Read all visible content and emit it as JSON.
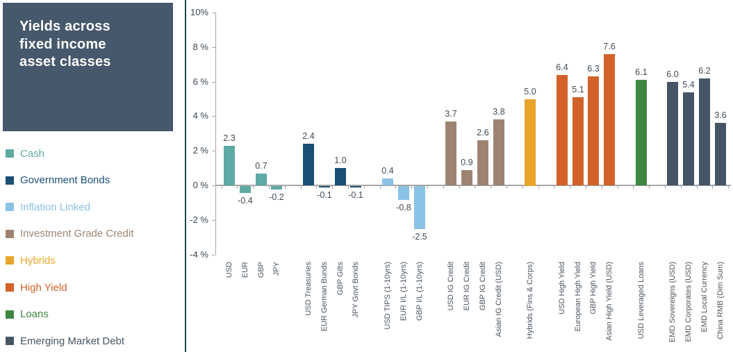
{
  "title": "Yields across\nfixed income\nasset classes",
  "legend": {
    "items": [
      {
        "label": "Cash",
        "color": "#5EA9A3"
      },
      {
        "label": "Government Bonds",
        "color": "#1A4F76"
      },
      {
        "label": "Inflation Linked",
        "color": "#8AC2E5"
      },
      {
        "label": "Investment Grade Credit",
        "color": "#9D8472"
      },
      {
        "label": "Hybrids",
        "color": "#E9A42B"
      },
      {
        "label": "High Yield",
        "color": "#D2622A"
      },
      {
        "label": "Loans",
        "color": "#3F8742"
      },
      {
        "label": "Emerging Market Debt",
        "color": "#455565"
      }
    ]
  },
  "chart_data": {
    "type": "bar",
    "title": "Yields across fixed income asset classes",
    "xlabel": "",
    "ylabel": "",
    "ylim": [
      -4,
      10
    ],
    "grid": false,
    "legend_position": "left",
    "y_ticks": [
      10,
      8,
      6,
      4,
      2,
      0,
      -2,
      -4
    ],
    "y_tick_labels": [
      "10%",
      "8 %",
      "6 %",
      "4 %",
      "2 %",
      "0 %",
      "-2 %",
      "-4 %"
    ],
    "groups": [
      {
        "name": "Cash",
        "color": "#5EA9A3",
        "bars": [
          {
            "label": "USD",
            "value": 2.3
          },
          {
            "label": "EUR",
            "value": -0.4
          },
          {
            "label": "GBP",
            "value": 0.7
          },
          {
            "label": "JPY",
            "value": -0.2
          }
        ]
      },
      {
        "name": "Government Bonds",
        "color": "#1A4F76",
        "bars": [
          {
            "label": "USD Treasuries",
            "value": 2.4
          },
          {
            "label": "EUR German Bunds",
            "value": -0.1
          },
          {
            "label": "GBP Gilts",
            "value": 1.0
          },
          {
            "label": "JPY Govt Bonds",
            "value": -0.1
          }
        ]
      },
      {
        "name": "Inflation Linked",
        "color": "#8AC2E5",
        "bars": [
          {
            "label": "USD TIPS (1-10yrs)",
            "value": 0.4
          },
          {
            "label": "EUR I/L (1-10yrs)",
            "value": -0.8
          },
          {
            "label": "GBP I/L (1-10yrs)",
            "value": -2.5
          }
        ]
      },
      {
        "name": "Investment Grade Credit",
        "color": "#9D8472",
        "bars": [
          {
            "label": "USD IG Credit",
            "value": 3.7
          },
          {
            "label": "EUR IG Credit",
            "value": 0.9
          },
          {
            "label": "GBP IG Credit",
            "value": 2.6
          },
          {
            "label": "Asian IG Credit (USD)",
            "value": 3.8
          }
        ]
      },
      {
        "name": "Hybrids",
        "color": "#E9A42B",
        "bars": [
          {
            "label": "Hybrids (Fins & Corps)",
            "value": 5.0
          }
        ]
      },
      {
        "name": "High Yield",
        "color": "#D2622A",
        "bars": [
          {
            "label": "USD High Yield",
            "value": 6.4
          },
          {
            "label": "European High Yield",
            "value": 5.1
          },
          {
            "label": "GBP High Yield",
            "value": 6.3
          },
          {
            "label": "Asian High Yield (USD)",
            "value": 7.6
          }
        ]
      },
      {
        "name": "Loans",
        "color": "#3F8742",
        "bars": [
          {
            "label": "USD Leveraged Loans",
            "value": 6.1
          }
        ]
      },
      {
        "name": "Emerging Market Debt",
        "color": "#455565",
        "bars": [
          {
            "label": "EMD Sovereigns (USD)",
            "value": 6.0
          },
          {
            "label": "EMD Corporates (USD)",
            "value": 5.4
          },
          {
            "label": "EMD Local Currency",
            "value": 6.2
          },
          {
            "label": "China RMB (Dim Sum)",
            "value": 3.6
          }
        ]
      }
    ]
  }
}
